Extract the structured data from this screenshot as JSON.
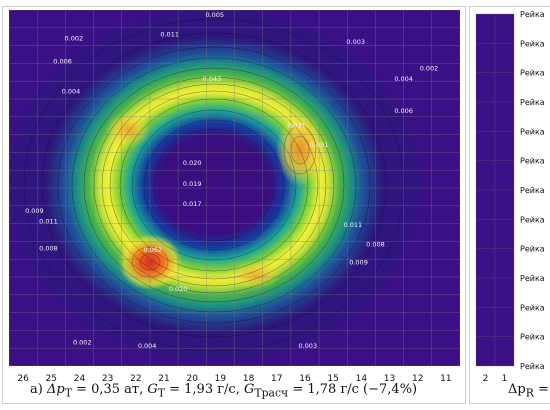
{
  "chart_data": [
    {
      "type": "heatmap",
      "x_ticks": [
        "26",
        "25",
        "24",
        "23",
        "22",
        "21",
        "20",
        "19",
        "18",
        "17",
        "16",
        "15",
        "14",
        "13",
        "12",
        "11"
      ],
      "y_ticks": [],
      "contour_labels": [
        {
          "text": "0.005",
          "x": 19.2,
          "y": 0.4
        },
        {
          "text": "0.011",
          "x": 20.8,
          "y": 1.5
        },
        {
          "text": "0.002",
          "x": 24.2,
          "y": 1.7
        },
        {
          "text": "0.006",
          "x": 24.6,
          "y": 3.0
        },
        {
          "text": "0.004",
          "x": 24.3,
          "y": 4.7
        },
        {
          "text": "0.003",
          "x": 14.2,
          "y": 1.9
        },
        {
          "text": "0.002",
          "x": 11.6,
          "y": 3.4
        },
        {
          "text": "0.004",
          "x": 12.5,
          "y": 4.0
        },
        {
          "text": "0.006",
          "x": 12.5,
          "y": 5.8
        },
        {
          "text": "0.043",
          "x": 19.3,
          "y": 4.0
        },
        {
          "text": "0.041",
          "x": 16.3,
          "y": 6.6
        },
        {
          "text": "0.031",
          "x": 15.5,
          "y": 7.7
        },
        {
          "text": "0.020",
          "x": 20.0,
          "y": 8.7
        },
        {
          "text": "0.019",
          "x": 20.0,
          "y": 9.9
        },
        {
          "text": "0.017",
          "x": 20.0,
          "y": 11.0
        },
        {
          "text": "0.009",
          "x": 25.6,
          "y": 11.4
        },
        {
          "text": "0.011",
          "x": 25.1,
          "y": 12.0
        },
        {
          "text": "0.008",
          "x": 25.1,
          "y": 13.5
        },
        {
          "text": "0.011",
          "x": 14.3,
          "y": 12.2
        },
        {
          "text": "0.008",
          "x": 13.5,
          "y": 13.3
        },
        {
          "text": "0.009",
          "x": 14.1,
          "y": 14.3
        },
        {
          "text": "0.062",
          "x": 21.4,
          "y": 13.6
        },
        {
          "text": "0.020",
          "x": 20.5,
          "y": 15.8
        },
        {
          "text": "0.002",
          "x": 23.9,
          "y": 18.8
        },
        {
          "text": "0.004",
          "x": 21.6,
          "y": 19.0
        },
        {
          "text": "0.003",
          "x": 15.9,
          "y": 19.0
        }
      ],
      "caption": "а) Δp_T = 0,35 ат,  G_T = 1,93 г/с,  G_Tрасч = 1,78 г/с  (−7,4%)"
    },
    {
      "type": "heatmap",
      "x_ticks": [
        "2",
        "1"
      ],
      "row_labels": [
        "Рейка",
        "Рейка",
        "Рейка",
        "Рейка",
        "Рейка",
        "Рейка",
        "Рейка",
        "Рейка",
        "Рейка",
        "Рейка",
        "Рейка",
        "Рейка",
        "Рейка"
      ],
      "caption": "Δp̄_R ="
    }
  ],
  "caption_main": {
    "prefix": "а) ",
    "dp": "Δp",
    "dp_sub": "T",
    "dp_val": " = 0,35 ат,  ",
    "g": "G",
    "g_sub": "T",
    "g_val": " = 1,93 г/с,  ",
    "gr": "G",
    "gr_sub": "Tрасч",
    "gr_val": " = 1,78 г/с  (−7,4%)"
  },
  "caption_right": {
    "symbol": "Δp",
    "sub": "R",
    "rest": " ="
  }
}
